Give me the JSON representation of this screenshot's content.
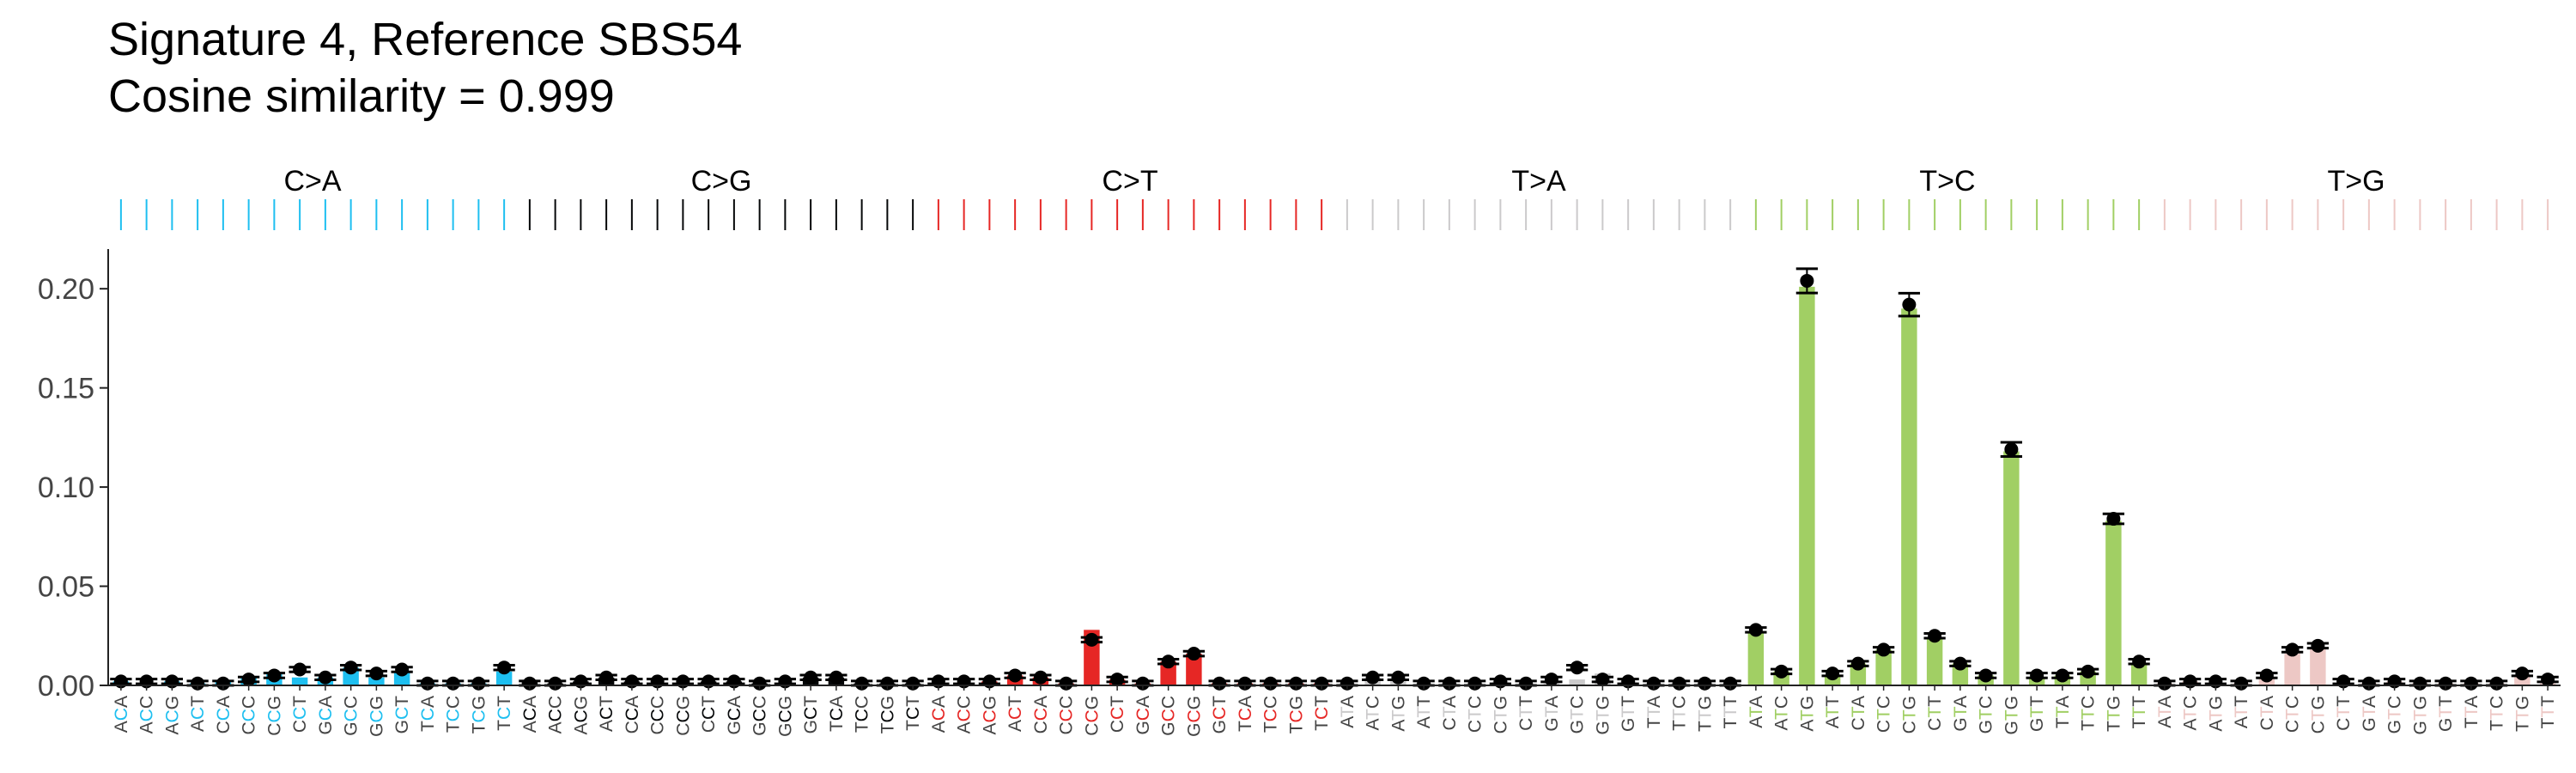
{
  "chart_data": {
    "type": "bar",
    "title": "Signature 4, Reference SBS54",
    "subtitle": "Cosine similarity = 0.999",
    "xlabel": "",
    "ylabel": "",
    "ylim": [
      0,
      0.22
    ],
    "yticks": [
      "0.00",
      "0.05",
      "0.10",
      "0.15",
      "0.20"
    ],
    "grid": false,
    "legend": "none",
    "mutation_groups": [
      {
        "label": "C>A",
        "color": "#1ebff0"
      },
      {
        "label": "C>G",
        "color": "#050708"
      },
      {
        "label": "C>T",
        "color": "#e62725"
      },
      {
        "label": "T>A",
        "color": "#cbcacb"
      },
      {
        "label": "T>C",
        "color": "#a1cf64"
      },
      {
        "label": "T>G",
        "color": "#edc8c5"
      }
    ],
    "categories": [
      "ACA",
      "ACC",
      "ACG",
      "ACT",
      "CCA",
      "CCC",
      "CCG",
      "CCT",
      "GCA",
      "GCC",
      "GCG",
      "GCT",
      "TCA",
      "TCC",
      "TCG",
      "TCT",
      "ACA",
      "ACC",
      "ACG",
      "ACT",
      "CCA",
      "CCC",
      "CCG",
      "CCT",
      "GCA",
      "GCC",
      "GCG",
      "GCT",
      "TCA",
      "TCC",
      "TCG",
      "TCT",
      "ACA",
      "ACC",
      "ACG",
      "ACT",
      "CCA",
      "CCC",
      "CCG",
      "CCT",
      "GCA",
      "GCC",
      "GCG",
      "GCT",
      "TCA",
      "TCC",
      "TCG",
      "TCT",
      "ATA",
      "ATC",
      "ATG",
      "ATT",
      "CTA",
      "CTC",
      "CTG",
      "CTT",
      "GTA",
      "GTC",
      "GTG",
      "GTT",
      "TTA",
      "TTC",
      "TTG",
      "TTT",
      "ATA",
      "ATC",
      "ATG",
      "ATT",
      "CTA",
      "CTC",
      "CTG",
      "CTT",
      "GTA",
      "GTC",
      "GTG",
      "GTT",
      "TTA",
      "TTC",
      "TTG",
      "TTT",
      "ATA",
      "ATC",
      "ATG",
      "ATT",
      "CTA",
      "CTC",
      "CTG",
      "CTT",
      "GTA",
      "GTC",
      "GTG",
      "GTT",
      "TTA",
      "TTC",
      "TTG",
      "TTT"
    ],
    "series": [
      {
        "values": [
          0.002,
          0.001,
          0.002,
          0.001,
          0.002,
          0.004,
          0.006,
          0.004,
          0.004,
          0.009,
          0.004,
          0.007,
          0.001,
          0.001,
          0.001,
          0.007,
          0.002,
          0.001,
          0.002,
          0.004,
          0.002,
          0.001,
          0.001,
          0.002,
          0.002,
          0.001,
          0.001,
          0.004,
          0.004,
          0.001,
          0.001,
          0.001,
          0.001,
          0.001,
          0.002,
          0.005,
          0.004,
          0.001,
          0.028,
          0.003,
          0.001,
          0.012,
          0.016,
          0.001,
          0.001,
          0.001,
          0.001,
          0.001,
          0.001,
          0.004,
          0.003,
          0.001,
          0.001,
          0.001,
          0.002,
          0.001,
          0.001,
          0.003,
          0.006,
          0.002,
          0.001,
          0.001,
          0.001,
          0.001,
          0.027,
          0.007,
          0.201,
          0.005,
          0.011,
          0.018,
          0.19,
          0.024,
          0.011,
          0.005,
          0.118,
          0.004,
          0.005,
          0.007,
          0.083,
          0.011,
          0.001,
          0.002,
          0.001,
          0.001,
          0.004,
          0.016,
          0.019,
          0.001,
          0.001,
          0.002,
          0.001,
          0.001,
          0.001,
          0.001,
          0.005,
          0.001
        ]
      },
      {
        "values": [
          0.002,
          0.002,
          0.002,
          0.001,
          0.001,
          0.003,
          0.005,
          0.008,
          0.004,
          0.009,
          0.006,
          0.008,
          0.001,
          0.001,
          0.001,
          0.009,
          0.001,
          0.001,
          0.002,
          0.004,
          0.002,
          0.002,
          0.002,
          0.002,
          0.002,
          0.001,
          0.002,
          0.004,
          0.004,
          0.001,
          0.001,
          0.001,
          0.002,
          0.002,
          0.002,
          0.005,
          0.004,
          0.001,
          0.023,
          0.003,
          0.001,
          0.012,
          0.016,
          0.001,
          0.001,
          0.001,
          0.001,
          0.001,
          0.001,
          0.004,
          0.004,
          0.001,
          0.001,
          0.001,
          0.002,
          0.001,
          0.003,
          0.009,
          0.003,
          0.002,
          0.001,
          0.001,
          0.001,
          0.001,
          0.028,
          0.007,
          0.204,
          0.006,
          0.011,
          0.018,
          0.192,
          0.025,
          0.011,
          0.005,
          0.119,
          0.005,
          0.005,
          0.007,
          0.084,
          0.012,
          0.001,
          0.002,
          0.002,
          0.001,
          0.005,
          0.018,
          0.02,
          0.002,
          0.001,
          0.002,
          0.001,
          0.001,
          0.001,
          0.001,
          0.006,
          0.003
        ]
      }
    ]
  }
}
